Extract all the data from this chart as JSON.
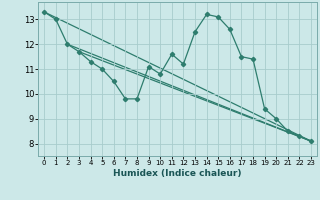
{
  "xlabel": "Humidex (Indice chaleur)",
  "bg_color": "#cce8e8",
  "line_color": "#2e7d6e",
  "grid_color": "#a8cccc",
  "xlim": [
    -0.5,
    23.5
  ],
  "ylim": [
    7.5,
    13.7
  ],
  "xticks": [
    0,
    1,
    2,
    3,
    4,
    5,
    6,
    7,
    8,
    9,
    10,
    11,
    12,
    13,
    14,
    15,
    16,
    17,
    18,
    19,
    20,
    21,
    22,
    23
  ],
  "yticks": [
    8,
    9,
    10,
    11,
    12,
    13
  ],
  "main_x": [
    0,
    1,
    2,
    3,
    4,
    5,
    6,
    7,
    8,
    9,
    10,
    11,
    12,
    13,
    14,
    15,
    16,
    17,
    18,
    19,
    20,
    21,
    22,
    23
  ],
  "main_y": [
    13.3,
    13.0,
    12.0,
    11.7,
    11.3,
    11.0,
    10.5,
    9.8,
    9.8,
    11.1,
    10.8,
    11.6,
    11.2,
    12.5,
    13.2,
    13.1,
    12.6,
    11.5,
    11.4,
    9.4,
    9.0,
    8.5,
    8.3,
    8.1
  ],
  "trend1_x": [
    0,
    23
  ],
  "trend1_y": [
    13.3,
    8.1
  ],
  "trend2_x": [
    2,
    23
  ],
  "trend2_y": [
    12.0,
    8.1
  ],
  "trend3_x": [
    3,
    23
  ],
  "trend3_y": [
    11.7,
    8.1
  ]
}
